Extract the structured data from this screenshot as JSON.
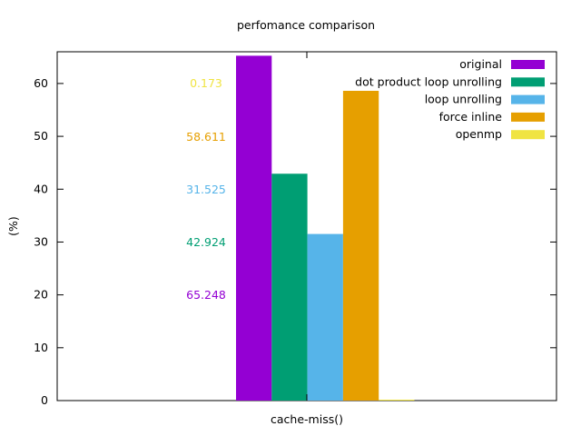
{
  "chart_data": {
    "type": "bar",
    "title": "perfomance comparison",
    "xlabel": "",
    "ylabel": "(%)",
    "categories": [
      "cache-miss()"
    ],
    "ylim": [
      0,
      66
    ],
    "yticks": [
      0,
      10,
      20,
      30,
      40,
      50,
      60
    ],
    "grid": false,
    "legend_position": "top-right",
    "series": [
      {
        "name": "original",
        "values": [
          65.248
        ],
        "color": "#9400d3",
        "label": "65.248"
      },
      {
        "name": "dot product loop unrolling",
        "values": [
          42.924
        ],
        "color": "#009e73",
        "label": "42.924"
      },
      {
        "name": "loop unrolling",
        "values": [
          31.525
        ],
        "color": "#56b4e9",
        "label": "31.525"
      },
      {
        "name": "force inline",
        "values": [
          58.611
        ],
        "color": "#e69f00",
        "label": "58.611"
      },
      {
        "name": "openmp",
        "values": [
          0.173
        ],
        "color": "#f0e442",
        "label": "0.173"
      }
    ]
  }
}
